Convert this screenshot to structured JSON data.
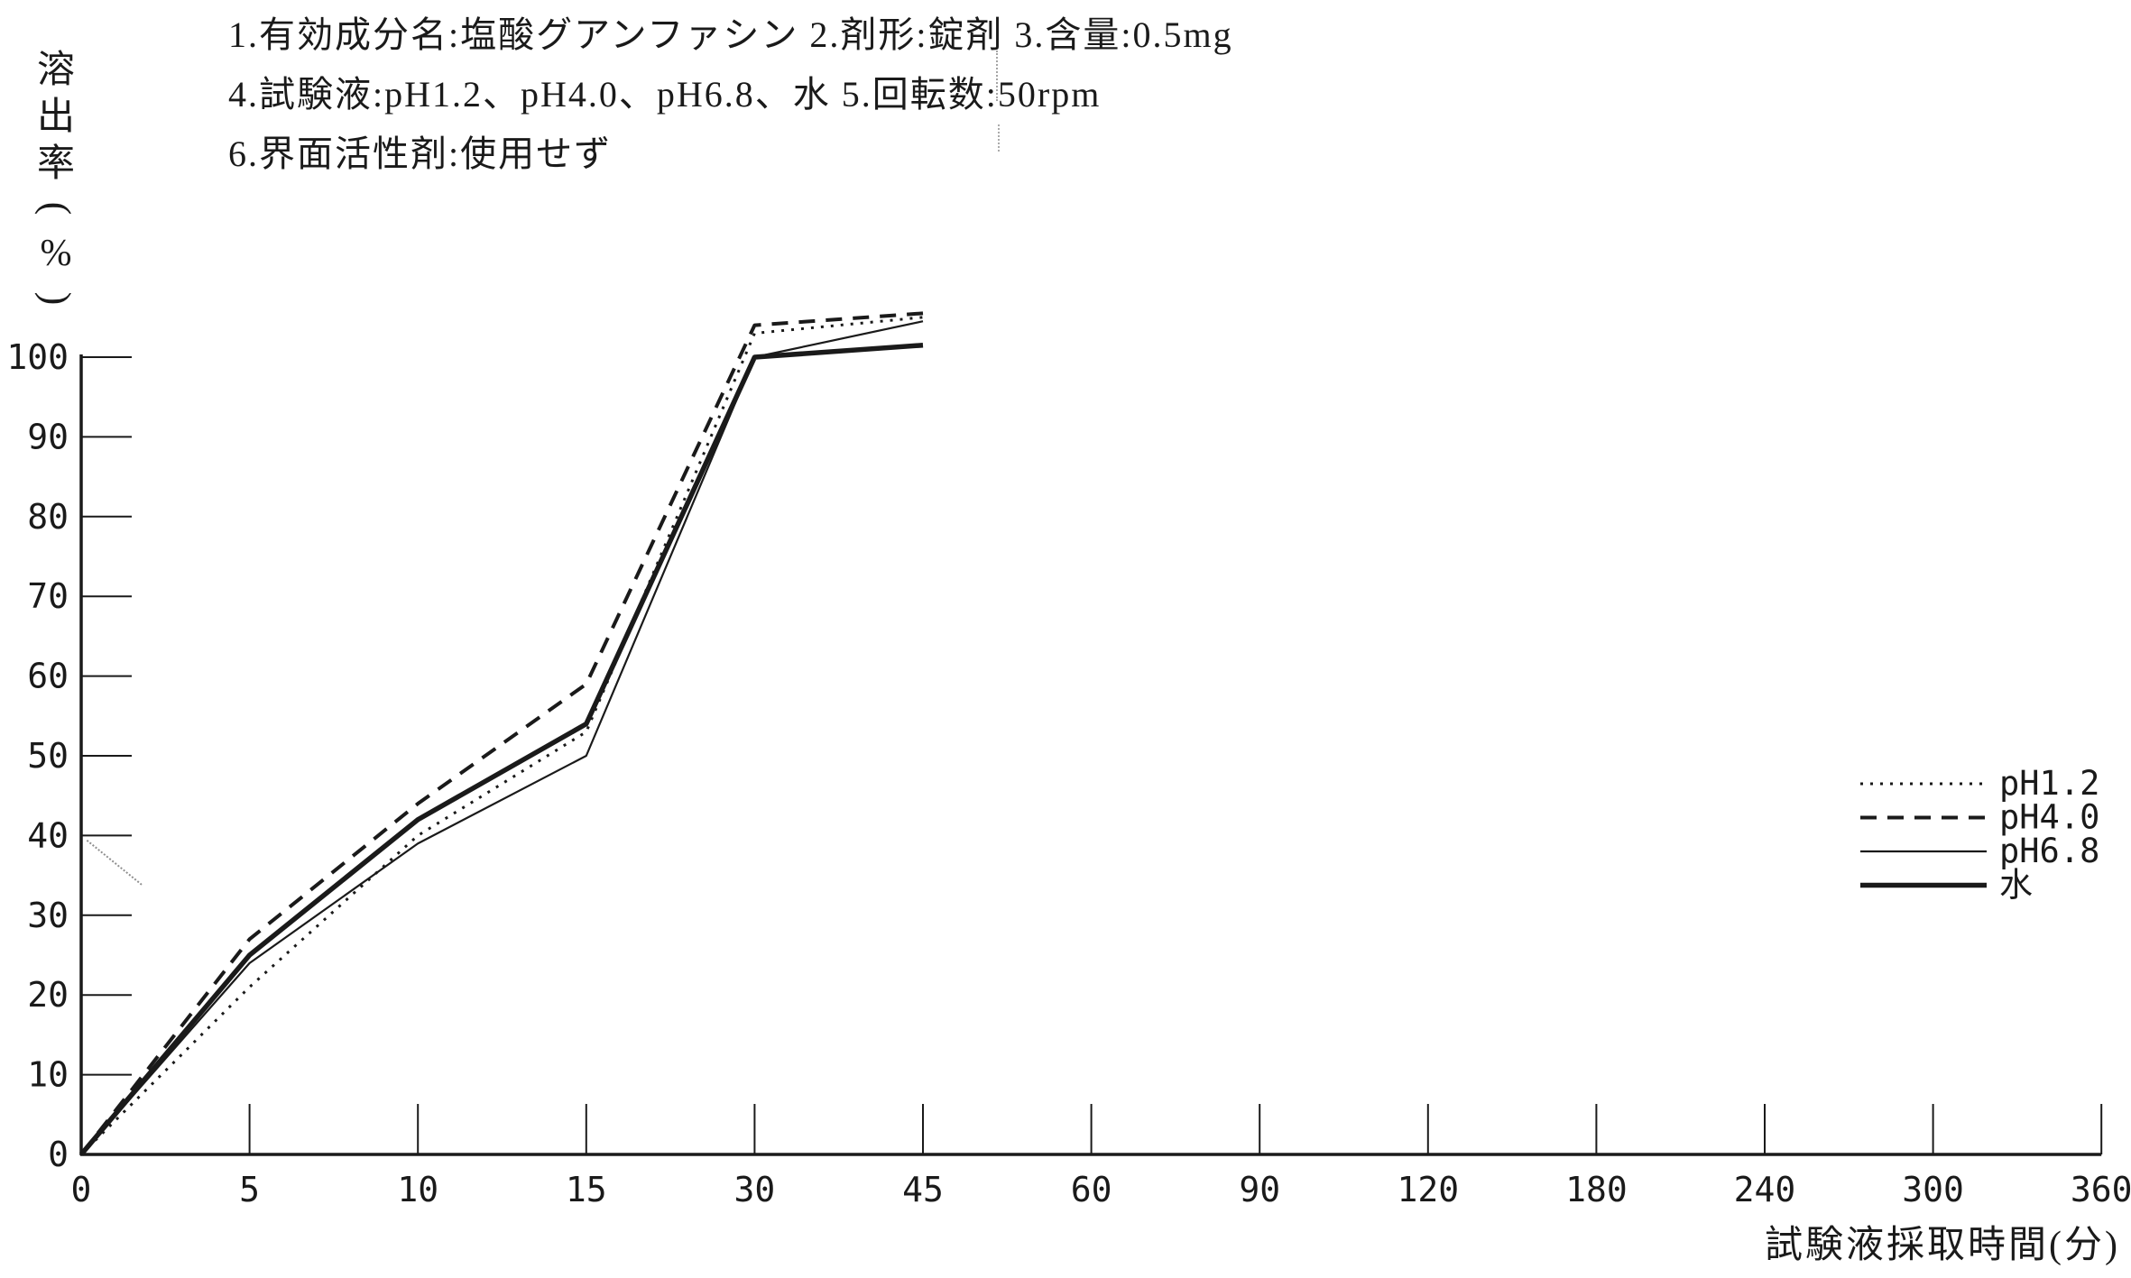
{
  "page": {
    "background": "#ffffff",
    "ink": "#1a1a1a"
  },
  "header": {
    "line1": "1.有効成分名:塩酸グアンファシン  2.剤形:錠剤  3.含量:0.5mg",
    "line2": "4.試験液:pH1.2、pH4.0、pH6.8、水  5.回転数:50rpm",
    "line3": "6.界面活性剤:使用せず"
  },
  "chart_data": {
    "type": "line",
    "ylabel": "溶出率(%)",
    "ylabel_chars": [
      "溶",
      "出",
      "率",
      "(",
      "%",
      ")"
    ],
    "xlabel": "試験液採取時間(分)",
    "x_ticks": [
      0,
      5,
      10,
      15,
      30,
      45,
      60,
      90,
      120,
      180,
      240,
      300,
      360
    ],
    "x_axis_note": "ticks evenly spaced although time values are nonlinear",
    "y_ticks": [
      0,
      10,
      20,
      30,
      40,
      50,
      60,
      70,
      80,
      90,
      100
    ],
    "ylim": [
      0,
      110
    ],
    "grid": false,
    "legend_position": "right-middle",
    "sample_times": [
      0,
      5,
      10,
      15,
      30,
      45
    ],
    "series": [
      {
        "name": "pH1.2",
        "line_style": "dotted",
        "values": [
          0,
          21,
          40,
          53,
          103,
          105
        ]
      },
      {
        "name": "pH4.0",
        "line_style": "dashed",
        "values": [
          0,
          27,
          44,
          59,
          104,
          105.5
        ]
      },
      {
        "name": "pH6.8",
        "line_style": "solid-thin",
        "values": [
          0,
          24,
          39,
          50,
          100,
          104.5
        ]
      },
      {
        "name": "水",
        "line_style": "solid-thick",
        "values": [
          0,
          25,
          42,
          54,
          100,
          101.5
        ]
      }
    ]
  }
}
